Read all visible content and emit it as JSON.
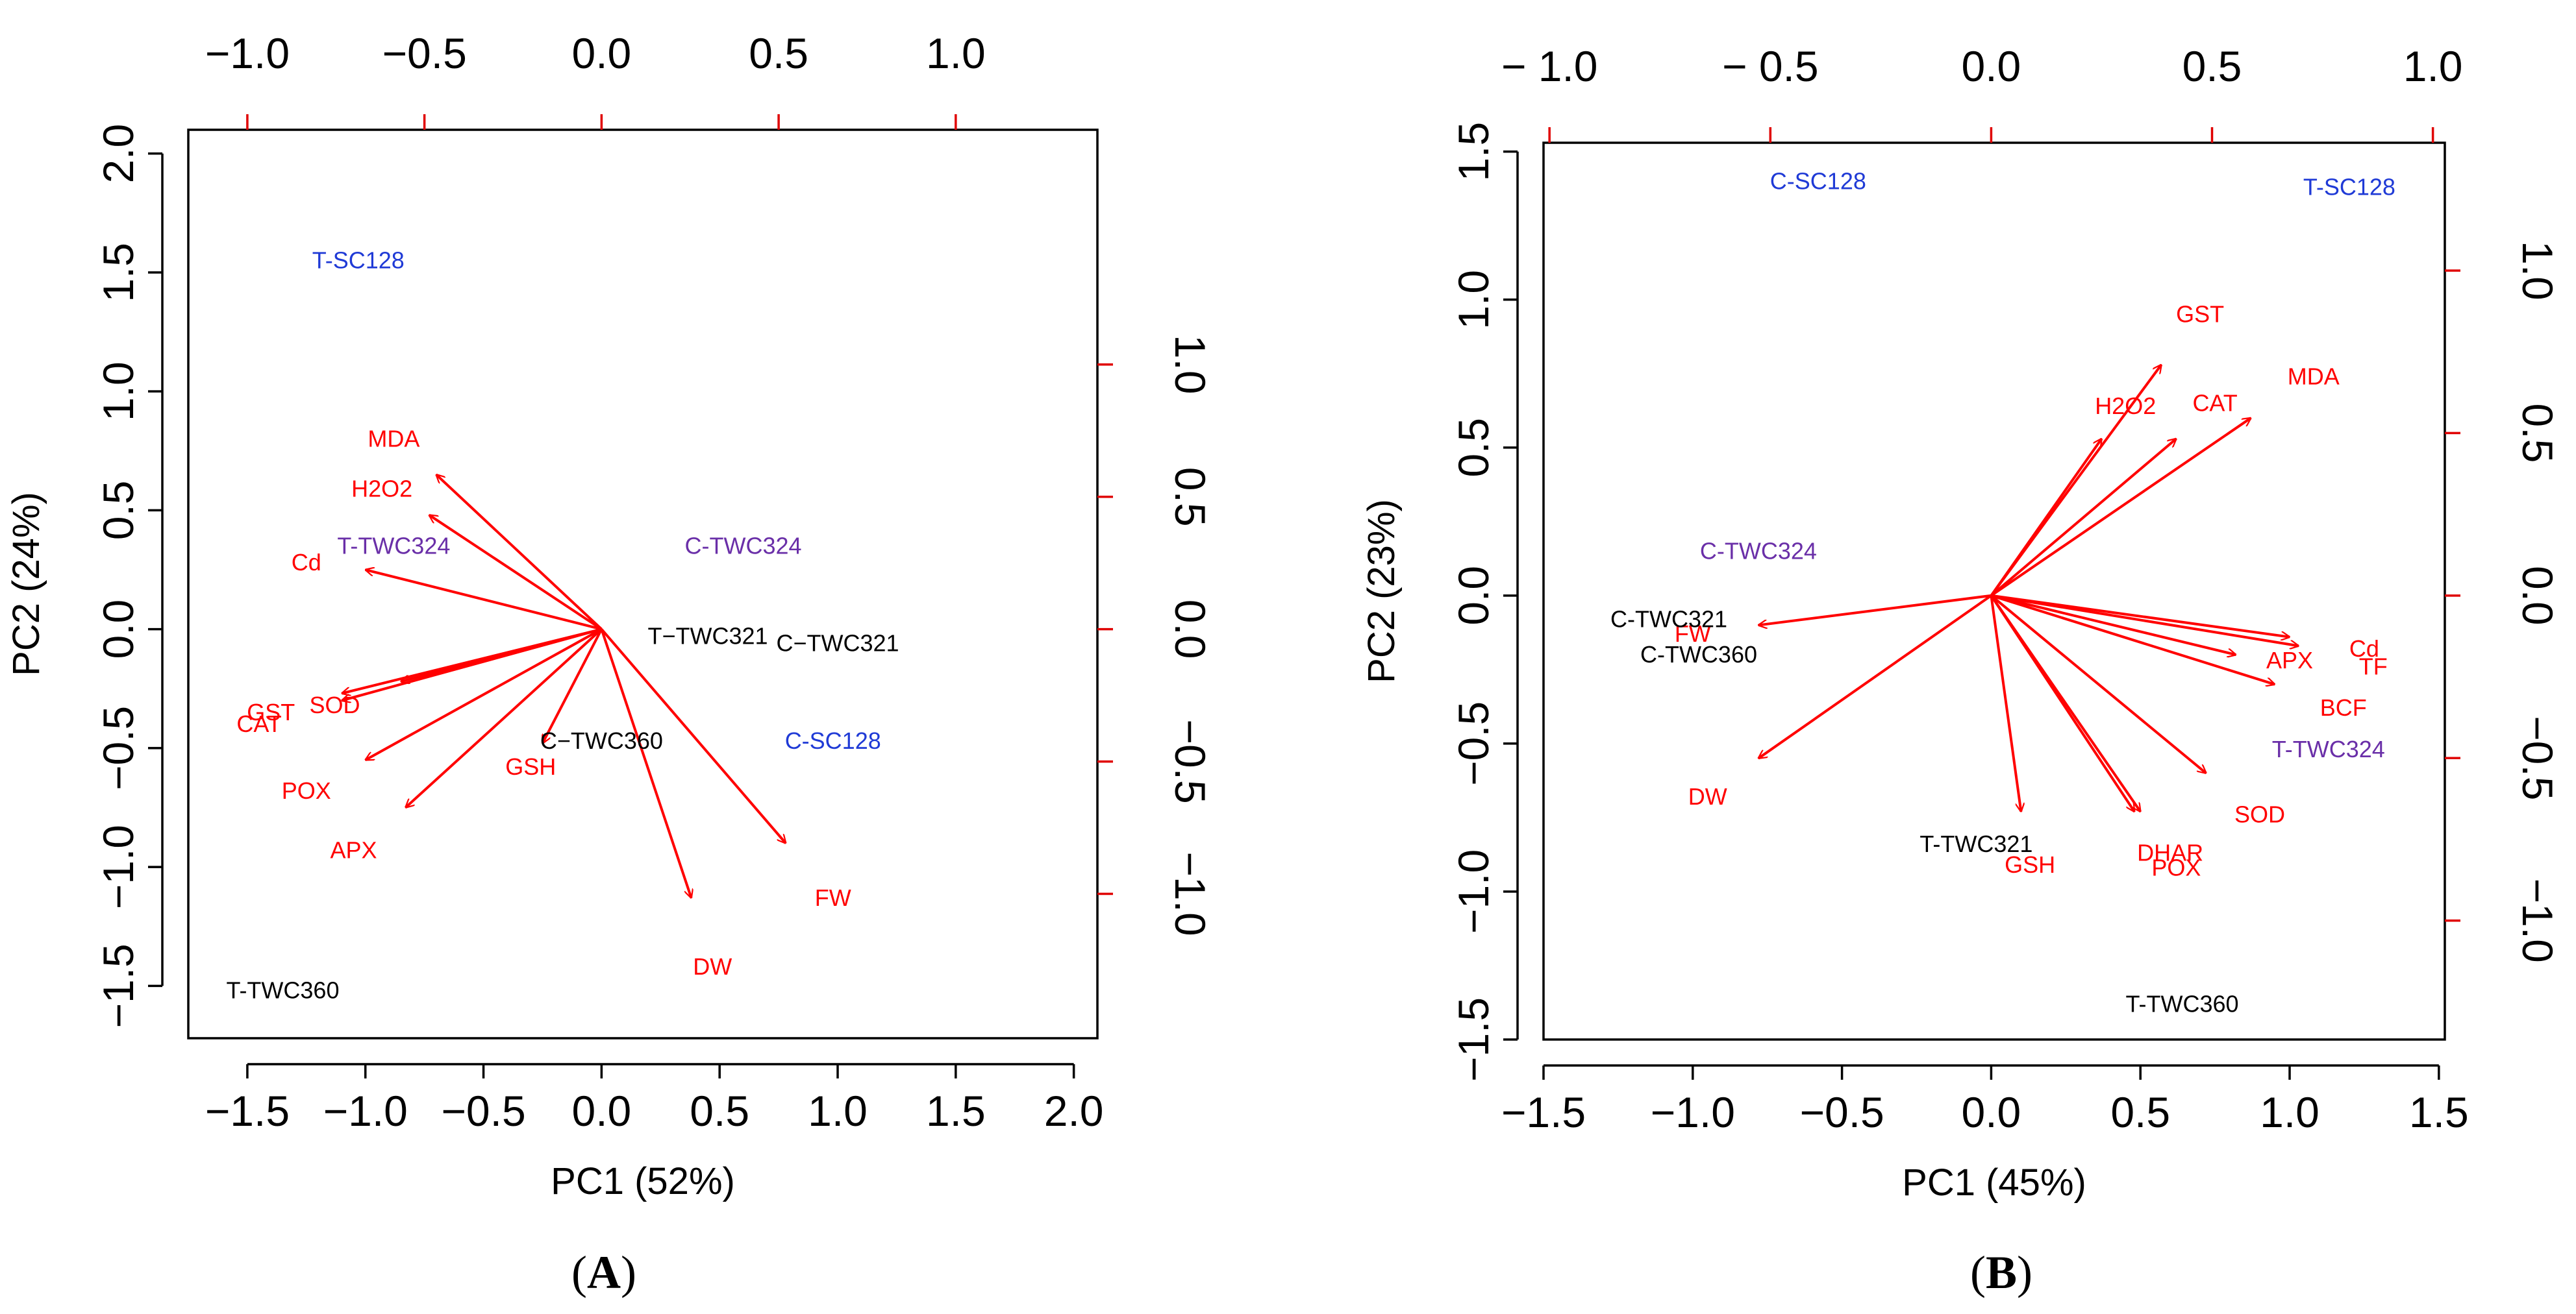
{
  "chart_data": [
    {
      "type": "biplot",
      "panel": "A",
      "xlabel": "PC1 (52%)",
      "ylabel": "PC2 (24%)",
      "xlim": [
        -1.75,
        2.1
      ],
      "ylim": [
        -1.72,
        2.1
      ],
      "x_ticks": [
        -1.5,
        -1.0,
        -0.5,
        0.0,
        0.5,
        1.0,
        1.5,
        2.0
      ],
      "x_tick_labels": [
        "−1.5",
        "−1.0",
        "−0.5",
        "0.0",
        "0.5",
        "1.0",
        "1.5",
        "2.0"
      ],
      "y_ticks": [
        -1.5,
        -1.0,
        -0.5,
        0.0,
        0.5,
        1.0,
        1.5,
        2.0
      ],
      "y_tick_labels": [
        "−1.5",
        "−1.0",
        "−0.5",
        "0.0",
        "0.5",
        "1.0",
        "1.5",
        "2.0"
      ],
      "loading_scale": 1.5,
      "top_ticks": [
        -1.0,
        -0.5,
        0.0,
        0.5,
        1.0
      ],
      "top_tick_labels": [
        "−1.0",
        "−0.5",
        "0.0",
        "0.5",
        "1.0"
      ],
      "right_ticks": [
        -1.0,
        -0.5,
        0.0,
        0.5,
        1.0
      ],
      "right_tick_labels": [
        "−1.0",
        "−0.5",
        "0.0",
        "0.5",
        "1.0"
      ],
      "loadings": [
        {
          "name": "MDA",
          "x": -0.7,
          "y": 0.65,
          "lx": -0.88,
          "ly": 0.8
        },
        {
          "name": "H2O2",
          "x": -0.73,
          "y": 0.48,
          "lx": -0.93,
          "ly": 0.59
        },
        {
          "name": "Cd",
          "x": -1.0,
          "y": 0.25,
          "lx": -1.25,
          "ly": 0.28
        },
        {
          "name": "SOD",
          "x": -0.85,
          "y": -0.22,
          "lx": -1.13,
          "ly": -0.32
        },
        {
          "name": "GST",
          "x": -1.1,
          "y": -0.27,
          "lx": -1.4,
          "ly": -0.35
        },
        {
          "name": "CAT",
          "x": -1.1,
          "y": -0.3,
          "lx": -1.45,
          "ly": -0.4
        },
        {
          "name": "POX",
          "x": -1.0,
          "y": -0.55,
          "lx": -1.25,
          "ly": -0.68
        },
        {
          "name": "APX",
          "x": -0.83,
          "y": -0.75,
          "lx": -1.05,
          "ly": -0.93
        },
        {
          "name": "GSH",
          "x": -0.25,
          "y": -0.48,
          "lx": -0.3,
          "ly": -0.58
        },
        {
          "name": "DW",
          "x": 0.38,
          "y": -1.13,
          "lx": 0.47,
          "ly": -1.42
        },
        {
          "name": "FW",
          "x": 0.78,
          "y": -0.9,
          "lx": 0.98,
          "ly": -1.13
        }
      ],
      "observations": [
        {
          "name": "T-SC128",
          "x": -1.03,
          "y": 1.55,
          "color": "#1f3ad6"
        },
        {
          "name": "T-TWC324",
          "x": -0.88,
          "y": 0.35,
          "color": "#6a2fa8"
        },
        {
          "name": "C-TWC324",
          "x": 0.6,
          "y": 0.35,
          "color": "#6a2fa8"
        },
        {
          "name": "T−TWC321",
          "x": 0.45,
          "y": -0.03,
          "color": "#000000"
        },
        {
          "name": "C−TWC321",
          "x": 1.0,
          "y": -0.06,
          "color": "#000000"
        },
        {
          "name": "C−TWC360",
          "x": 0.0,
          "y": -0.47,
          "color": "#000000"
        },
        {
          "name": "C-SC128",
          "x": 0.98,
          "y": -0.47,
          "color": "#1f3ad6"
        },
        {
          "name": "T-TWC360",
          "x": -1.35,
          "y": -1.52,
          "color": "#000000"
        }
      ]
    },
    {
      "type": "biplot",
      "panel": "B",
      "xlabel": "PC1 (45%)",
      "ylabel": "PC2 (23%)",
      "xlim": [
        -1.5,
        1.52
      ],
      "ylim": [
        -1.5,
        1.53
      ],
      "x_ticks": [
        -1.5,
        -1.0,
        -0.5,
        0.0,
        0.5,
        1.0,
        1.5
      ],
      "x_tick_labels": [
        "−1.5",
        "−1.0",
        "−0.5",
        "0.0",
        "0.5",
        "1.0",
        "1.5"
      ],
      "y_ticks": [
        -1.5,
        -1.0,
        -0.5,
        0.0,
        0.5,
        1.0,
        1.5
      ],
      "y_tick_labels": [
        "−1.5",
        "−1.0",
        "−0.5",
        "0.0",
        "0.5",
        "1.0",
        "1.5"
      ],
      "loading_scale": 1.48,
      "top_ticks": [
        -1.0,
        -0.5,
        0.0,
        0.5,
        1.0
      ],
      "top_tick_labels": [
        "− 1.0",
        "− 0.5",
        "0.0",
        "0.5",
        "1.0"
      ],
      "right_ticks": [
        -1.0,
        -0.5,
        0.0,
        0.5,
        1.0
      ],
      "right_tick_labels": [
        "−1.0",
        "−0.5",
        "0.0",
        "0.5",
        "1.0"
      ],
      "loadings": [
        {
          "name": "GST",
          "x": 0.57,
          "y": 0.78,
          "lx": 0.7,
          "ly": 0.95
        },
        {
          "name": "H2O2",
          "x": 0.37,
          "y": 0.53,
          "lx": 0.45,
          "ly": 0.64
        },
        {
          "name": "CAT",
          "x": 0.62,
          "y": 0.53,
          "lx": 0.75,
          "ly": 0.65
        },
        {
          "name": "MDA",
          "x": 0.87,
          "y": 0.6,
          "lx": 1.08,
          "ly": 0.74
        },
        {
          "name": "Cd",
          "x": 1.0,
          "y": -0.14,
          "lx": 1.25,
          "ly": -0.18
        },
        {
          "name": "APX",
          "x": 0.82,
          "y": -0.2,
          "lx": 1.0,
          "ly": -0.22
        },
        {
          "name": "TF",
          "x": 1.03,
          "y": -0.17,
          "lx": 1.28,
          "ly": -0.24
        },
        {
          "name": "BCF",
          "x": 0.95,
          "y": -0.3,
          "lx": 1.18,
          "ly": -0.38
        },
        {
          "name": "SOD",
          "x": 0.72,
          "y": -0.6,
          "lx": 0.9,
          "ly": -0.74
        },
        {
          "name": "DHAR",
          "x": 0.48,
          "y": -0.73,
          "lx": 0.6,
          "ly": -0.87
        },
        {
          "name": "POX",
          "x": 0.5,
          "y": -0.73,
          "lx": 0.62,
          "ly": -0.92
        },
        {
          "name": "GSH",
          "x": 0.1,
          "y": -0.73,
          "lx": 0.13,
          "ly": -0.91
        },
        {
          "name": "FW",
          "x": -0.78,
          "y": -0.1,
          "lx": -1.0,
          "ly": -0.13
        },
        {
          "name": "DW",
          "x": -0.78,
          "y": -0.55,
          "lx": -0.95,
          "ly": -0.68
        }
      ],
      "observations": [
        {
          "name": "C-SC128",
          "x": -0.58,
          "y": 1.4,
          "color": "#1f3ad6"
        },
        {
          "name": "T-SC128",
          "x": 1.2,
          "y": 1.38,
          "color": "#1f3ad6"
        },
        {
          "name": "C-TWC324",
          "x": -0.78,
          "y": 0.15,
          "color": "#6a2fa8"
        },
        {
          "name": "C-TWC321",
          "x": -1.08,
          "y": -0.08,
          "color": "#000000"
        },
        {
          "name": "C-TWC360",
          "x": -0.98,
          "y": -0.2,
          "color": "#000000"
        },
        {
          "name": "T-TWC324",
          "x": 1.13,
          "y": -0.52,
          "color": "#6a2fa8"
        },
        {
          "name": "T-TWC321",
          "x": -0.05,
          "y": -0.84,
          "color": "#000000"
        },
        {
          "name": "T-TWC360",
          "x": 0.64,
          "y": -1.38,
          "color": "#000000"
        }
      ]
    }
  ]
}
